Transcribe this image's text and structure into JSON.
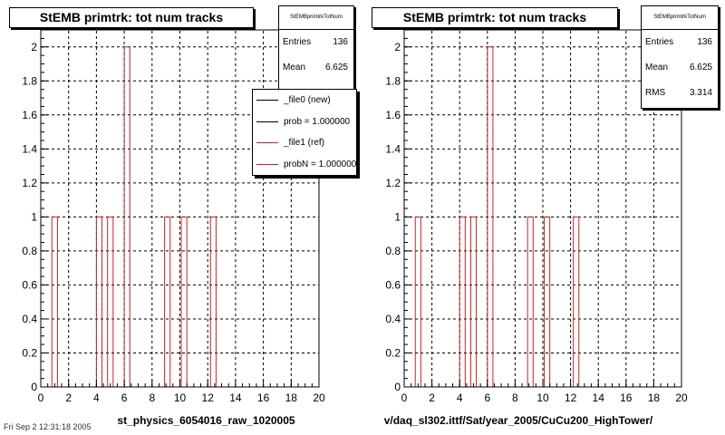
{
  "chart_data": [
    {
      "type": "bar",
      "title": "StEMB primtrk: tot num tracks",
      "xlabel": "st_physics_6054016_raw_1020005",
      "ylabel": "",
      "xlim": [
        0,
        20
      ],
      "ylim": [
        0,
        2.1
      ],
      "grid": true,
      "xticks": [
        "0",
        "2",
        "4",
        "6",
        "8",
        "10",
        "12",
        "14",
        "16",
        "18",
        "20"
      ],
      "yticks": [
        "0",
        "0.2",
        "0.4",
        "0.6",
        "0.8",
        "1",
        "1.2",
        "1.4",
        "1.6",
        "1.8",
        "2"
      ],
      "x": [
        1,
        4.2,
        5,
        6.2,
        9.1,
        10.3,
        12.4
      ],
      "values": [
        1,
        1,
        1,
        2,
        1,
        1,
        1
      ],
      "bin_width": 0.4,
      "stats": {
        "name": "StEMBprimtrkTotNum",
        "entries_label": "Entries",
        "entries": "136",
        "mean_label": "Mean",
        "mean": "6.625"
      },
      "legend": [
        "_file0 (new)",
        "prob = 1.000000",
        "_file1 (ref)",
        "probN = 1.000000"
      ],
      "colors": {
        "hist": "#cc2222",
        "new": "#000000",
        "ref": "#cc2222"
      }
    },
    {
      "type": "bar",
      "title": "StEMB primtrk: tot num tracks",
      "xlabel": "v/daq_sl302.ittf/Sat/year_2005/CuCu200_HighTower/",
      "ylabel": "",
      "xlim": [
        0,
        20
      ],
      "ylim": [
        0,
        2.1
      ],
      "grid": true,
      "xticks": [
        "0",
        "2",
        "4",
        "6",
        "8",
        "10",
        "12",
        "14",
        "16",
        "18",
        "20"
      ],
      "yticks": [
        "0",
        "0.2",
        "0.4",
        "0.6",
        "0.8",
        "1",
        "1.2",
        "1.4",
        "1.6",
        "1.8",
        "2"
      ],
      "x": [
        1,
        4.2,
        5,
        6.2,
        9.1,
        10.3,
        12.4
      ],
      "values": [
        1,
        1,
        1,
        2,
        1,
        1,
        1
      ],
      "bin_width": 0.4,
      "stats": {
        "name": "StEMBprimtrkTotNum",
        "entries_label": "Entries",
        "entries": "136",
        "mean_label": "Mean",
        "mean": "6.625",
        "rms_label": "RMS",
        "rms": "3.314"
      },
      "colors": {
        "hist": "#cc2222"
      }
    }
  ],
  "footer_left": "Fri Sep  2 12:31:18 2005"
}
